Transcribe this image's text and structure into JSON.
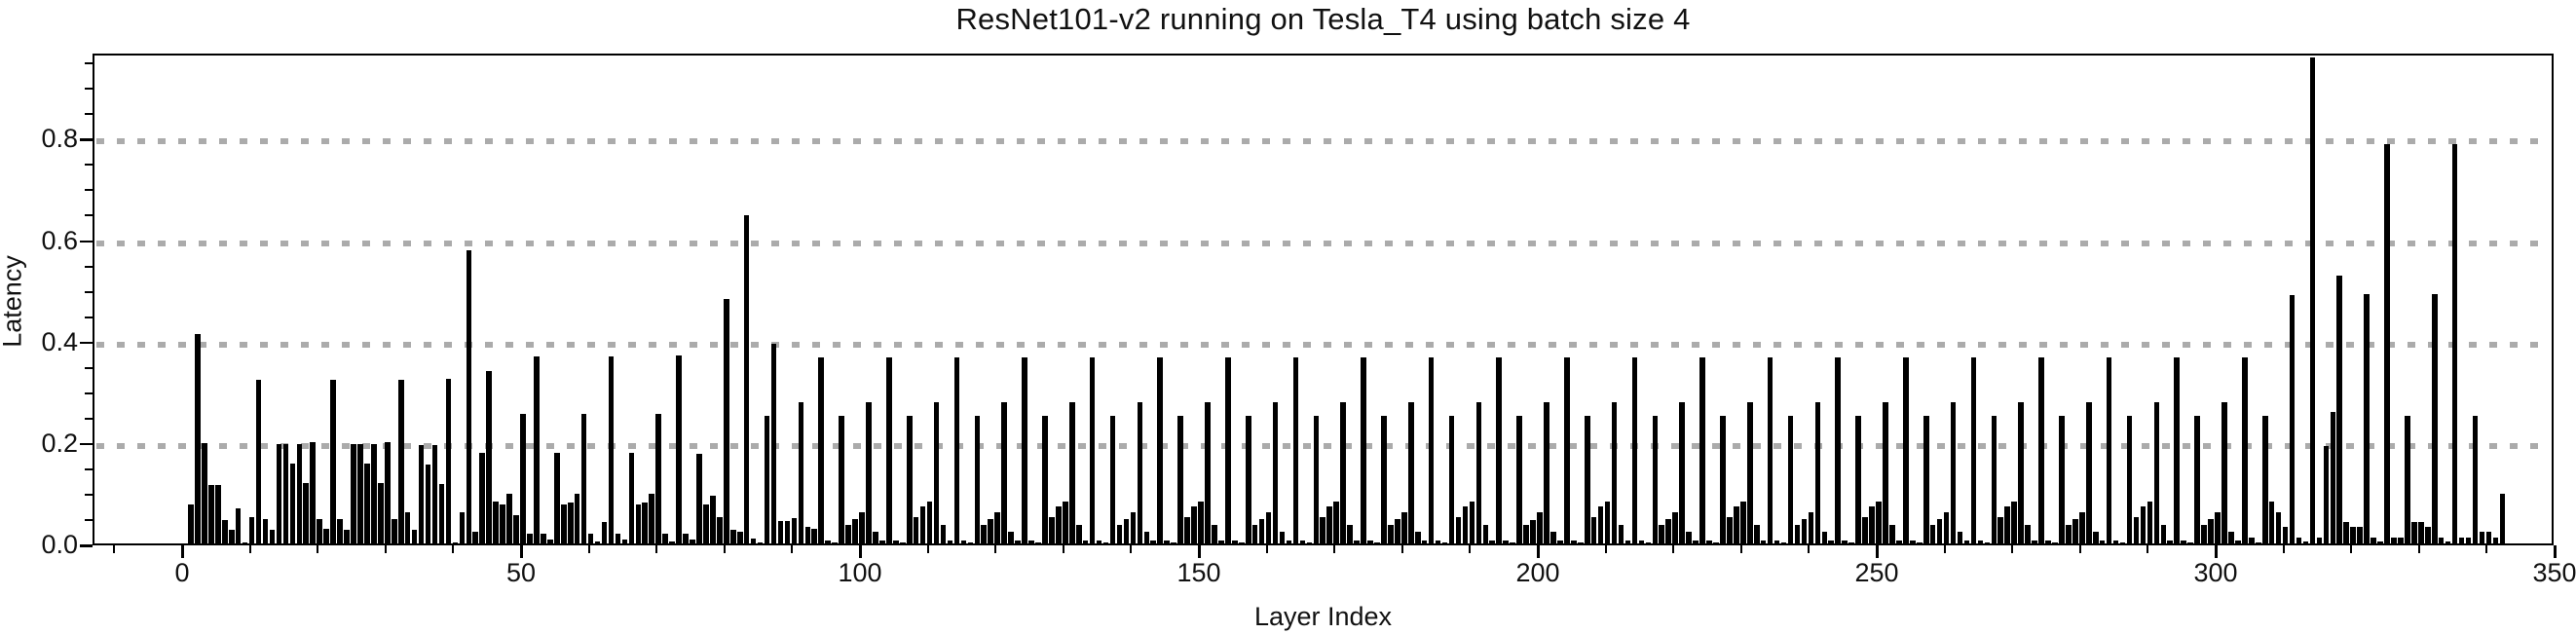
{
  "chart_data": {
    "type": "bar",
    "title": "ResNet101-v2 running on Tesla_T4 using batch size 4",
    "xlabel": "Layer Index",
    "ylabel": "Latency",
    "x_tick_labels": [
      "0",
      "50",
      "100",
      "150",
      "200",
      "250",
      "300",
      "350"
    ],
    "x_ticks": [
      0,
      50,
      100,
      150,
      200,
      250,
      300,
      350
    ],
    "x_minor_tick_step": 10,
    "y_tick_labels": [
      "0.0",
      "0.2",
      "0.4",
      "0.6",
      "0.8"
    ],
    "y_ticks": [
      0.0,
      0.2,
      0.4,
      0.6,
      0.8
    ],
    "y_minor_tick_step": 0.05,
    "xlim": [
      -13.2,
      350
    ],
    "ylim": [
      0,
      0.97
    ],
    "grid": "horizontal dotted at y ticks 0.2/0.4/0.6/0.8",
    "legend": "none",
    "bar_color": "#000000",
    "grid_color": "#ababab",
    "x_description": "layer index 0..342, one bar per layer",
    "values": [
      0,
      0.084,
      0.42,
      0.205,
      0.123,
      0.122,
      0.054,
      0.035,
      0.077,
      0.01,
      0.06,
      0.33,
      0.056,
      0.034,
      0.203,
      0.203,
      0.166,
      0.203,
      0.127,
      0.208,
      0.056,
      0.036,
      0.33,
      0.056,
      0.034,
      0.203,
      0.203,
      0.166,
      0.203,
      0.127,
      0.208,
      0.056,
      0.33,
      0.07,
      0.034,
      0.202,
      0.164,
      0.202,
      0.125,
      0.333,
      0.01,
      0.07,
      0.585,
      0.03,
      0.186,
      0.347,
      0.09,
      0.084,
      0.105,
      0.063,
      0.263,
      0.026,
      0.376,
      0.026,
      0.015,
      0.186,
      0.084,
      0.088,
      0.106,
      0.263,
      0.026,
      0.012,
      0.05,
      0.376,
      0.026,
      0.015,
      0.186,
      0.084,
      0.088,
      0.106,
      0.263,
      0.026,
      0.012,
      0.379,
      0.026,
      0.015,
      0.185,
      0.084,
      0.102,
      0.06,
      0.49,
      0.034,
      0.03,
      0.655,
      0.018,
      0.01,
      0.26,
      0.402,
      0.051,
      0.051,
      0.058,
      0.287,
      0.04,
      0.037,
      0.374,
      0.014,
      0.01,
      0.259,
      0.045,
      0.055,
      0.07,
      0.287,
      0.03,
      0.013,
      0.374,
      0.014,
      0.01,
      0.259,
      0.06,
      0.08,
      0.09,
      0.287,
      0.045,
      0.013,
      0.374,
      0.014,
      0.01,
      0.259,
      0.045,
      0.055,
      0.07,
      0.287,
      0.03,
      0.013,
      0.374,
      0.014,
      0.01,
      0.259,
      0.06,
      0.08,
      0.09,
      0.287,
      0.045,
      0.013,
      0.374,
      0.014,
      0.01,
      0.259,
      0.045,
      0.055,
      0.07,
      0.287,
      0.03,
      0.013,
      0.374,
      0.014,
      0.01,
      0.259,
      0.06,
      0.08,
      0.09,
      0.287,
      0.045,
      0.013,
      0.374,
      0.014,
      0.01,
      0.259,
      0.045,
      0.055,
      0.07,
      0.287,
      0.03,
      0.013,
      0.374,
      0.014,
      0.01,
      0.259,
      0.06,
      0.08,
      0.09,
      0.287,
      0.045,
      0.013,
      0.374,
      0.014,
      0.01,
      0.259,
      0.045,
      0.055,
      0.07,
      0.287,
      0.03,
      0.013,
      0.374,
      0.014,
      0.01,
      0.259,
      0.06,
      0.08,
      0.09,
      0.287,
      0.045,
      0.013,
      0.374,
      0.014,
      0.01,
      0.259,
      0.045,
      0.054,
      0.07,
      0.287,
      0.03,
      0.013,
      0.374,
      0.014,
      0.01,
      0.259,
      0.06,
      0.08,
      0.09,
      0.287,
      0.045,
      0.013,
      0.374,
      0.014,
      0.01,
      0.259,
      0.045,
      0.055,
      0.07,
      0.287,
      0.03,
      0.013,
      0.374,
      0.014,
      0.01,
      0.259,
      0.06,
      0.08,
      0.09,
      0.287,
      0.045,
      0.013,
      0.374,
      0.014,
      0.01,
      0.259,
      0.045,
      0.055,
      0.07,
      0.287,
      0.03,
      0.013,
      0.374,
      0.014,
      0.01,
      0.259,
      0.06,
      0.08,
      0.09,
      0.287,
      0.045,
      0.013,
      0.374,
      0.014,
      0.01,
      0.259,
      0.045,
      0.055,
      0.07,
      0.287,
      0.03,
      0.013,
      0.374,
      0.014,
      0.01,
      0.259,
      0.06,
      0.08,
      0.09,
      0.287,
      0.045,
      0.013,
      0.374,
      0.014,
      0.01,
      0.259,
      0.045,
      0.055,
      0.07,
      0.287,
      0.03,
      0.013,
      0.374,
      0.014,
      0.01,
      0.259,
      0.06,
      0.08,
      0.09,
      0.287,
      0.045,
      0.013,
      0.374,
      0.014,
      0.01,
      0.259,
      0.045,
      0.055,
      0.07,
      0.287,
      0.03,
      0.013,
      0.374,
      0.02,
      0.01,
      0.259,
      0.09,
      0.07,
      0.04,
      0.497,
      0.02,
      0.012,
      0.965,
      0.02,
      0.2,
      0.267,
      0.535,
      0.05,
      0.04,
      0.04,
      0.5,
      0.02,
      0.012,
      0.795,
      0.02,
      0.02,
      0.26,
      0.05,
      0.05,
      0.04,
      0.5,
      0.02,
      0.012,
      0.795,
      0.02,
      0.02,
      0.26,
      0.03,
      0.03,
      0.02,
      0.105
    ]
  }
}
